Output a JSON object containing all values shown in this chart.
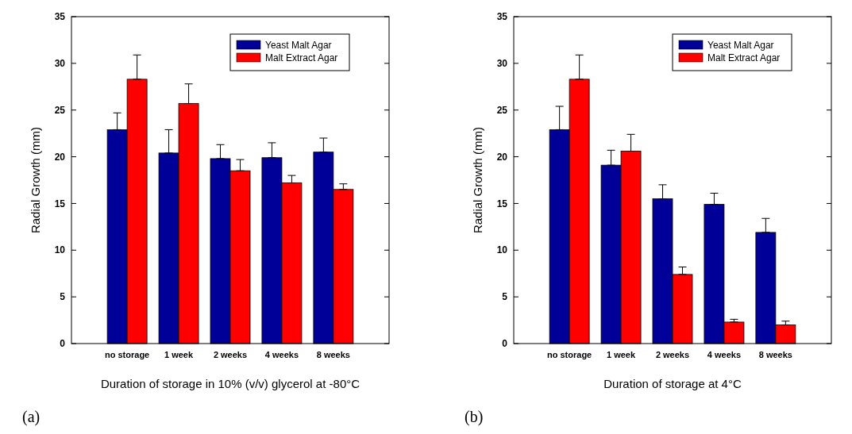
{
  "chart_data": [
    {
      "type": "bar",
      "categories": [
        "no storage",
        "1 week",
        "2 weeks",
        "4 weeks",
        "8 weeks"
      ],
      "xlabel": "Duration of storage in 10% (v/v) glycerol at -80°C",
      "ylabel": "Radial Growth (mm)",
      "ylim": [
        0,
        35
      ],
      "yticks": [
        0,
        5,
        10,
        15,
        20,
        25,
        30,
        35
      ],
      "grid": false,
      "legend": "top right",
      "annotations": [
        "(a)"
      ],
      "series": [
        {
          "name": "Yeast Malt Agar",
          "color": "#000099",
          "values": [
            22.9,
            20.4,
            19.8,
            19.9,
            20.5
          ],
          "errors": [
            [
              22.9,
              24.7
            ],
            [
              20.4,
              22.9
            ],
            [
              19.8,
              21.3
            ],
            [
              19.9,
              21.5
            ],
            [
              20.5,
              22.0
            ]
          ]
        },
        {
          "name": "Malt Extract Agar",
          "color": "#ff0000",
          "values": [
            28.3,
            25.7,
            18.5,
            17.2,
            16.5
          ],
          "errors": [
            [
              28.3,
              30.9
            ],
            [
              25.7,
              27.8
            ],
            [
              18.5,
              19.7
            ],
            [
              17.2,
              18.0
            ],
            [
              16.5,
              17.1
            ]
          ]
        }
      ]
    },
    {
      "type": "bar",
      "categories": [
        "no storage",
        "1 week",
        "2 weeks",
        "4 weeks",
        "8 weeks"
      ],
      "xlabel": "Duration of storage at 4°C",
      "ylabel": "Radial Growth (mm)",
      "ylim": [
        0,
        35
      ],
      "yticks": [
        0,
        5,
        10,
        15,
        20,
        25,
        30,
        35
      ],
      "grid": false,
      "legend": "top right",
      "annotations": [
        "(b)"
      ],
      "series": [
        {
          "name": "Yeast Malt Agar",
          "color": "#000099",
          "values": [
            22.9,
            19.1,
            15.5,
            14.9,
            11.9
          ],
          "errors": [
            [
              22.9,
              25.4
            ],
            [
              19.1,
              20.7
            ],
            [
              15.5,
              17.0
            ],
            [
              14.9,
              16.1
            ],
            [
              11.9,
              13.4
            ]
          ]
        },
        {
          "name": "Malt Extract Agar",
          "color": "#ff0000",
          "values": [
            28.3,
            20.6,
            7.4,
            2.3,
            2.0
          ],
          "errors": [
            [
              28.3,
              30.9
            ],
            [
              20.6,
              22.4
            ],
            [
              7.4,
              8.2
            ],
            [
              2.3,
              2.6
            ],
            [
              2.0,
              2.4
            ]
          ]
        }
      ]
    }
  ]
}
